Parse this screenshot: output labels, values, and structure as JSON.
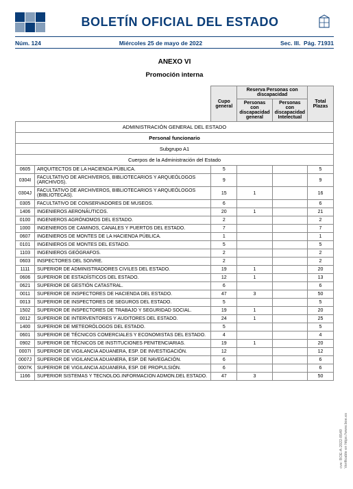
{
  "header": {
    "title": "BOLETÍN OFICIAL DEL ESTADO",
    "num": "Núm. 124",
    "date": "Miércoles 25 de mayo de 2022",
    "sec": "Sec. III.",
    "page": "Pág. 71931"
  },
  "anexo": "ANEXO VI",
  "subtitle": "Promoción interna",
  "table": {
    "headers": {
      "cupo": "Cupo general",
      "reserva": "Reserva Personas con discapacidad",
      "disc_gen": "Personas con discapacidad general",
      "disc_int": "Personas con discapacidad Intelectual",
      "total": "Total Plazas"
    },
    "sections": {
      "admin": "ADMINISTRACIÓN GENERAL DEL ESTADO",
      "personal": "Personal funcionario",
      "subgrupo": "Subgrupo A1",
      "cuerpos": "Cuerpos de la Administración del Estado"
    },
    "rows": [
      {
        "code": "0605",
        "name": "ARQUITECTOS DE LA HACIENDA PÚBLICA.",
        "cupo": "5",
        "dg": "",
        "di": "",
        "total": "5"
      },
      {
        "code": "0304I",
        "name": "FACULTATIVO DE ARCHIVEROS, BIBLIOTECARIOS Y ARQUEÓLOGOS (ARCHIVOS).",
        "cupo": "9",
        "dg": "",
        "di": "",
        "total": "9"
      },
      {
        "code": "0304J",
        "name": "FACULTATIVO DE ARCHIVEROS, BIBLIOTECARIOS Y ARQUEÓLOGOS (BIBLIOTECAS).",
        "cupo": "15",
        "dg": "1",
        "di": "",
        "total": "16"
      },
      {
        "code": "0305",
        "name": "FACULTATIVO DE CONSERVADORES DE MUSEOS.",
        "cupo": "6",
        "dg": "",
        "di": "",
        "total": "6"
      },
      {
        "code": "1406",
        "name": "INGENIEROS AERONÁUTICOS.",
        "cupo": "20",
        "dg": "1",
        "di": "",
        "total": "21"
      },
      {
        "code": "0100",
        "name": "INGENIEROS AGRÓNOMOS DEL ESTADO.",
        "cupo": "2",
        "dg": "",
        "di": "",
        "total": "2"
      },
      {
        "code": "1000",
        "name": "INGENIEROS DE CAMINOS, CANALES Y PUERTOS DEL ESTADO.",
        "cupo": "7",
        "dg": "",
        "di": "",
        "total": "7"
      },
      {
        "code": "0607",
        "name": "INGENIEROS DE MONTES DE LA HACIENDA PÚBLICA.",
        "cupo": "1",
        "dg": "",
        "di": "",
        "total": "1"
      },
      {
        "code": "0101",
        "name": "INGENIEROS DE MONTES DEL ESTADO.",
        "cupo": "5",
        "dg": "",
        "di": "",
        "total": "5"
      },
      {
        "code": "1103",
        "name": "INGENIEROS GEÓGRAFOS.",
        "cupo": "2",
        "dg": "",
        "di": "",
        "total": "2"
      },
      {
        "code": "0603",
        "name": "INSPECTORES DEL SOIVRE.",
        "cupo": "2",
        "dg": "",
        "di": "",
        "total": "2"
      },
      {
        "code": "1111",
        "name": "SUPERIOR DE ADMINISTRADORES CIVILES DEL ESTADO.",
        "cupo": "19",
        "dg": "1",
        "di": "",
        "total": "20"
      },
      {
        "code": "0606",
        "name": "SUPERIOR DE ESTADÍSTICOS DEL ESTADO.",
        "cupo": "12",
        "dg": "1",
        "di": "",
        "total": "13"
      },
      {
        "code": "0621",
        "name": "SUPERIOR DE GESTIÓN CATASTRAL.",
        "cupo": "6",
        "dg": "",
        "di": "",
        "total": "6"
      },
      {
        "code": "0011",
        "name": "SUPERIOR DE INSPECTORES DE HACIENDA DEL ESTADO.",
        "cupo": "47",
        "dg": "3",
        "di": "",
        "total": "50"
      },
      {
        "code": "0013",
        "name": "SUPERIOR DE INSPECTORES DE SEGUROS DEL ESTADO.",
        "cupo": "5",
        "dg": "",
        "di": "",
        "total": "5"
      },
      {
        "code": "1502",
        "name": "SUPERIOR DE INSPECTORES DE TRABAJO Y SEGURIDAD SOCIAL.",
        "cupo": "19",
        "dg": "1",
        "di": "",
        "total": "20"
      },
      {
        "code": "0012",
        "name": "SUPERIOR DE INTERVENTORES Y AUDITORES DEL ESTADO.",
        "cupo": "24",
        "dg": "1",
        "di": "",
        "total": "25"
      },
      {
        "code": "1400",
        "name": "SUPERIOR DE METEORÓLOGOS DEL ESTADO.",
        "cupo": "5",
        "dg": "",
        "di": "",
        "total": "5"
      },
      {
        "code": "0601",
        "name": "SUPERIOR DE TÉCNICOS COMERCIALES Y ECONOMISTAS DEL ESTADO.",
        "cupo": "4",
        "dg": "",
        "di": "",
        "total": "4"
      },
      {
        "code": "0902",
        "name": "SUPERIOR DE TÉCNICOS DE INSTITUCIONES PENITENCIARIAS.",
        "cupo": "19",
        "dg": "1",
        "di": "",
        "total": "20"
      },
      {
        "code": "0007I",
        "name": "SUPERIOR DE VIGILANCIA ADUANERA, ESP. DE INVESTIGACIÓN.",
        "cupo": "12",
        "dg": "",
        "di": "",
        "total": "12"
      },
      {
        "code": "0007J",
        "name": "SUPERIOR DE VIGILANCIA ADUANERA, ESP. DE NAVEGACIÓN.",
        "cupo": "6",
        "dg": "",
        "di": "",
        "total": "6"
      },
      {
        "code": "0007K",
        "name": "SUPERIOR DE VIGILANCIA ADUANERA, ESP. DE PROPULSIÓN.",
        "cupo": "6",
        "dg": "",
        "di": "",
        "total": "6"
      },
      {
        "code": "1166",
        "name": "SUPERIOR SISTEMAS Y TECNOLOG.INFORMACION ADMON.DEL ESTADO.",
        "cupo": "47",
        "dg": "3",
        "di": "",
        "total": "50"
      }
    ]
  },
  "side": {
    "cve": "cve: BOE-A-2022-8549",
    "verify": "Verificable en https://www.boe.es"
  },
  "colors": {
    "primary": "#0a3d78",
    "header_bg": "#e8e8e8",
    "border": "#888888"
  }
}
